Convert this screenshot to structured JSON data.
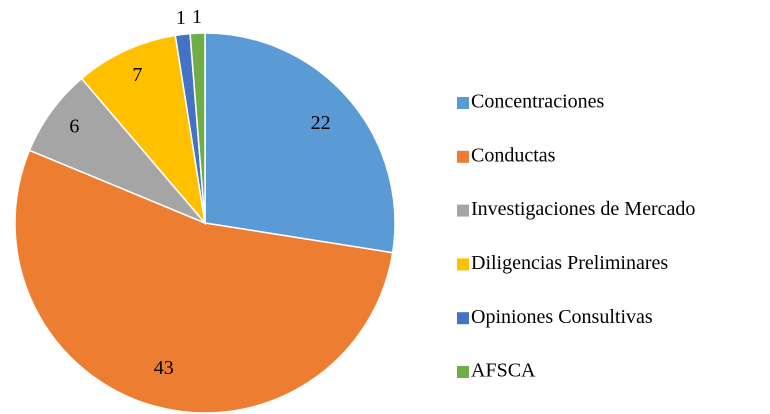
{
  "chart_data": {
    "type": "pie",
    "categories": [
      "Concentraciones",
      "Conductas",
      "Investigaciones de Mercado",
      "Diligencias Preliminares",
      "Opiniones Consultivas",
      "AFSCA"
    ],
    "values": [
      22,
      43,
      6,
      7,
      1,
      1
    ],
    "colors": [
      "#5b9bd5",
      "#ed7d31",
      "#a5a5a5",
      "#ffc000",
      "#4472c4",
      "#70ad47"
    ],
    "legend": "right"
  }
}
